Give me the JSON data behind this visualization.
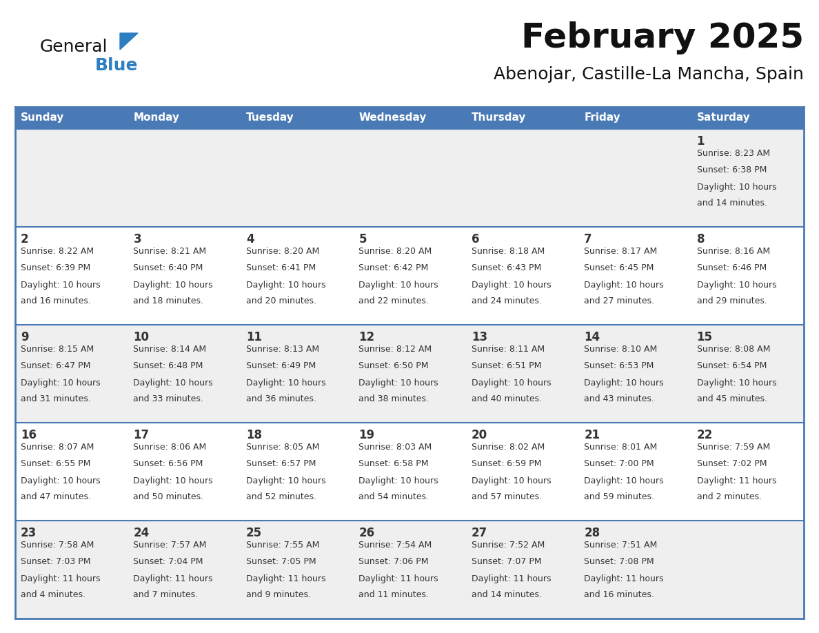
{
  "title": "February 2025",
  "subtitle": "Abenojar, Castille-La Mancha, Spain",
  "header_bg": "#4a7ab5",
  "header_text_color": "#ffffff",
  "cell_bg_row0": "#efefef",
  "cell_bg_row1": "#ffffff",
  "cell_bg_row2": "#efefef",
  "cell_bg_row3": "#ffffff",
  "cell_bg_row4": "#efefef",
  "border_color": "#4a7ab5",
  "day_headers": [
    "Sunday",
    "Monday",
    "Tuesday",
    "Wednesday",
    "Thursday",
    "Friday",
    "Saturday"
  ],
  "title_color": "#111111",
  "subtitle_color": "#111111",
  "text_color": "#333333",
  "day_num_color": "#333333",
  "logo_color_general": "#111111",
  "logo_color_blue": "#2d7fc1",
  "logo_triangle_color": "#2d7fc1",
  "calendar_data": [
    [
      {
        "day": null,
        "info": ""
      },
      {
        "day": null,
        "info": ""
      },
      {
        "day": null,
        "info": ""
      },
      {
        "day": null,
        "info": ""
      },
      {
        "day": null,
        "info": ""
      },
      {
        "day": null,
        "info": ""
      },
      {
        "day": 1,
        "info": "Sunrise: 8:23 AM\nSunset: 6:38 PM\nDaylight: 10 hours\nand 14 minutes."
      }
    ],
    [
      {
        "day": 2,
        "info": "Sunrise: 8:22 AM\nSunset: 6:39 PM\nDaylight: 10 hours\nand 16 minutes."
      },
      {
        "day": 3,
        "info": "Sunrise: 8:21 AM\nSunset: 6:40 PM\nDaylight: 10 hours\nand 18 minutes."
      },
      {
        "day": 4,
        "info": "Sunrise: 8:20 AM\nSunset: 6:41 PM\nDaylight: 10 hours\nand 20 minutes."
      },
      {
        "day": 5,
        "info": "Sunrise: 8:20 AM\nSunset: 6:42 PM\nDaylight: 10 hours\nand 22 minutes."
      },
      {
        "day": 6,
        "info": "Sunrise: 8:18 AM\nSunset: 6:43 PM\nDaylight: 10 hours\nand 24 minutes."
      },
      {
        "day": 7,
        "info": "Sunrise: 8:17 AM\nSunset: 6:45 PM\nDaylight: 10 hours\nand 27 minutes."
      },
      {
        "day": 8,
        "info": "Sunrise: 8:16 AM\nSunset: 6:46 PM\nDaylight: 10 hours\nand 29 minutes."
      }
    ],
    [
      {
        "day": 9,
        "info": "Sunrise: 8:15 AM\nSunset: 6:47 PM\nDaylight: 10 hours\nand 31 minutes."
      },
      {
        "day": 10,
        "info": "Sunrise: 8:14 AM\nSunset: 6:48 PM\nDaylight: 10 hours\nand 33 minutes."
      },
      {
        "day": 11,
        "info": "Sunrise: 8:13 AM\nSunset: 6:49 PM\nDaylight: 10 hours\nand 36 minutes."
      },
      {
        "day": 12,
        "info": "Sunrise: 8:12 AM\nSunset: 6:50 PM\nDaylight: 10 hours\nand 38 minutes."
      },
      {
        "day": 13,
        "info": "Sunrise: 8:11 AM\nSunset: 6:51 PM\nDaylight: 10 hours\nand 40 minutes."
      },
      {
        "day": 14,
        "info": "Sunrise: 8:10 AM\nSunset: 6:53 PM\nDaylight: 10 hours\nand 43 minutes."
      },
      {
        "day": 15,
        "info": "Sunrise: 8:08 AM\nSunset: 6:54 PM\nDaylight: 10 hours\nand 45 minutes."
      }
    ],
    [
      {
        "day": 16,
        "info": "Sunrise: 8:07 AM\nSunset: 6:55 PM\nDaylight: 10 hours\nand 47 minutes."
      },
      {
        "day": 17,
        "info": "Sunrise: 8:06 AM\nSunset: 6:56 PM\nDaylight: 10 hours\nand 50 minutes."
      },
      {
        "day": 18,
        "info": "Sunrise: 8:05 AM\nSunset: 6:57 PM\nDaylight: 10 hours\nand 52 minutes."
      },
      {
        "day": 19,
        "info": "Sunrise: 8:03 AM\nSunset: 6:58 PM\nDaylight: 10 hours\nand 54 minutes."
      },
      {
        "day": 20,
        "info": "Sunrise: 8:02 AM\nSunset: 6:59 PM\nDaylight: 10 hours\nand 57 minutes."
      },
      {
        "day": 21,
        "info": "Sunrise: 8:01 AM\nSunset: 7:00 PM\nDaylight: 10 hours\nand 59 minutes."
      },
      {
        "day": 22,
        "info": "Sunrise: 7:59 AM\nSunset: 7:02 PM\nDaylight: 11 hours\nand 2 minutes."
      }
    ],
    [
      {
        "day": 23,
        "info": "Sunrise: 7:58 AM\nSunset: 7:03 PM\nDaylight: 11 hours\nand 4 minutes."
      },
      {
        "day": 24,
        "info": "Sunrise: 7:57 AM\nSunset: 7:04 PM\nDaylight: 11 hours\nand 7 minutes."
      },
      {
        "day": 25,
        "info": "Sunrise: 7:55 AM\nSunset: 7:05 PM\nDaylight: 11 hours\nand 9 minutes."
      },
      {
        "day": 26,
        "info": "Sunrise: 7:54 AM\nSunset: 7:06 PM\nDaylight: 11 hours\nand 11 minutes."
      },
      {
        "day": 27,
        "info": "Sunrise: 7:52 AM\nSunset: 7:07 PM\nDaylight: 11 hours\nand 14 minutes."
      },
      {
        "day": 28,
        "info": "Sunrise: 7:51 AM\nSunset: 7:08 PM\nDaylight: 11 hours\nand 16 minutes."
      },
      {
        "day": null,
        "info": ""
      }
    ]
  ]
}
